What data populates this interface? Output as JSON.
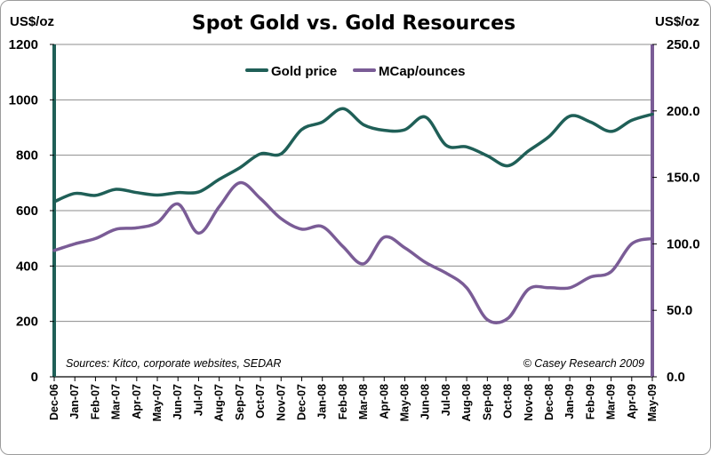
{
  "chart_data": {
    "type": "line",
    "title": "Spot Gold vs. Gold Resources",
    "y_left_label": "US$/oz",
    "y_right_label": "US$/oz",
    "y_left_range": [
      0,
      1200
    ],
    "y_right_range": [
      0,
      250
    ],
    "y_left_ticks": [
      "0",
      "200",
      "400",
      "600",
      "800",
      "1000",
      "1200"
    ],
    "y_right_ticks": [
      "0.0",
      "50.0",
      "100.0",
      "150.0",
      "200.0",
      "250.0"
    ],
    "grid": "horizontal",
    "legend_position": "top-center",
    "categories": [
      "Dec-06",
      "Jan-07",
      "Feb-07",
      "Mar-07",
      "Apr-07",
      "May-07",
      "Jun-07",
      "Jul-07",
      "Aug-07",
      "Sep-07",
      "Oct-07",
      "Nov-07",
      "Dec-07",
      "Jan-08",
      "Feb-08",
      "Mar-08",
      "Apr-08",
      "May-08",
      "Jun-08",
      "Jul-08",
      "Aug-08",
      "Sep-08",
      "Oct-08",
      "Nov-08",
      "Dec-08",
      "Jan-09",
      "Feb-09",
      "Mar-09",
      "Apr-09",
      "May-09"
    ],
    "series": [
      {
        "name": "Gold price",
        "axis": "left",
        "color": "#1f5f57",
        "values": [
          632,
          662,
          655,
          677,
          665,
          656,
          665,
          667,
          713,
          755,
          805,
          805,
          893,
          920,
          968,
          910,
          890,
          892,
          938,
          836,
          830,
          798,
          762,
          816,
          868,
          941,
          920,
          886,
          926,
          948
        ]
      },
      {
        "name": "MCap/ounces",
        "axis": "right",
        "color": "#7a5c96",
        "values": [
          95,
          100,
          104,
          111,
          112,
          116,
          130,
          108,
          128,
          146,
          134,
          119,
          111,
          113,
          98,
          85,
          105,
          97,
          86,
          78,
          67,
          43,
          44,
          66,
          67,
          67,
          75,
          79,
          100,
          104
        ]
      }
    ],
    "annotations": {
      "sources": "Sources: Kitco, corporate websites, SEDAR",
      "copyright": "© Casey Research 2009"
    }
  }
}
